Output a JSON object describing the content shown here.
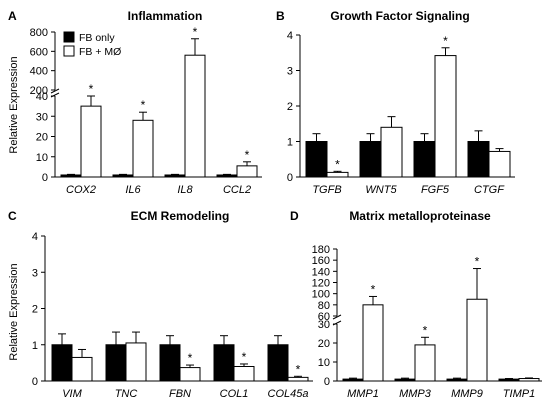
{
  "legend": [
    {
      "label": "FB only",
      "color": "#000000"
    },
    {
      "label": "FB + MØ",
      "color": "#ffffff"
    }
  ],
  "chart_data": [
    {
      "panel": "A",
      "title": "Inflammation",
      "type": "bar",
      "ylabel": "Relative Expression",
      "broken_axis": true,
      "ylim": [
        0,
        800
      ],
      "categories": [
        "COX2",
        "IL6",
        "IL8",
        "CCL2"
      ],
      "series": [
        {
          "name": "FB only",
          "values": [
            1,
            1,
            1,
            1
          ],
          "errors": [
            0.3,
            0.3,
            0.3,
            0.3
          ]
        },
        {
          "name": "FB + MØ",
          "values": [
            35,
            28,
            560,
            5.5
          ],
          "errors": [
            5,
            4,
            170,
            2
          ]
        }
      ],
      "significant": [
        false,
        true,
        false,
        true,
        false,
        true,
        false,
        true
      ],
      "segments": [
        {
          "range": [
            0,
            40
          ],
          "ticks": [
            0,
            10,
            20,
            30,
            40
          ]
        },
        {
          "range": [
            200,
            800
          ],
          "ticks": [
            200,
            400,
            600,
            800
          ]
        }
      ]
    },
    {
      "panel": "B",
      "title": "Growth Factor Signaling",
      "type": "bar",
      "ylabel": "",
      "broken_axis": false,
      "ylim": [
        0,
        4
      ],
      "categories": [
        "TGFB",
        "WNT5",
        "FGF5",
        "CTGF"
      ],
      "series": [
        {
          "name": "FB only",
          "values": [
            1,
            1,
            1,
            1
          ],
          "errors": [
            0.22,
            0.22,
            0.22,
            0.3
          ]
        },
        {
          "name": "FB + MØ",
          "values": [
            0.13,
            1.4,
            3.42,
            0.72
          ],
          "errors": [
            0.03,
            0.3,
            0.22,
            0.08
          ]
        }
      ],
      "significant": [
        false,
        true,
        false,
        false,
        false,
        true,
        false,
        false
      ],
      "segments": [
        {
          "range": [
            0,
            4
          ],
          "ticks": [
            0,
            1,
            2,
            3,
            4
          ]
        }
      ]
    },
    {
      "panel": "C",
      "title": "ECM Remodeling",
      "type": "bar",
      "ylabel": "Relative Expression",
      "broken_axis": false,
      "ylim": [
        0,
        4
      ],
      "categories": [
        "VIM",
        "TNC",
        "FBN",
        "COL1",
        "COL45a"
      ],
      "series": [
        {
          "name": "FB only",
          "values": [
            1,
            1,
            1,
            1,
            1
          ],
          "errors": [
            0.3,
            0.35,
            0.25,
            0.25,
            0.25
          ]
        },
        {
          "name": "FB + MØ",
          "values": [
            0.65,
            1.05,
            0.37,
            0.4,
            0.1
          ],
          "errors": [
            0.22,
            0.3,
            0.07,
            0.07,
            0.03
          ]
        }
      ],
      "significant": [
        false,
        false,
        false,
        false,
        false,
        true,
        false,
        true,
        false,
        true
      ],
      "segments": [
        {
          "range": [
            0,
            4
          ],
          "ticks": [
            0,
            1,
            2,
            3,
            4
          ]
        }
      ]
    },
    {
      "panel": "D",
      "title": "Matrix metalloproteinase",
      "type": "bar",
      "ylabel": "",
      "broken_axis": true,
      "ylim": [
        0,
        180
      ],
      "categories": [
        "MMP1",
        "MMP3",
        "MMP9",
        "TIMP1"
      ],
      "series": [
        {
          "name": "FB only",
          "values": [
            1,
            1,
            1,
            1
          ],
          "errors": [
            0.5,
            0.5,
            0.5,
            0.3
          ]
        },
        {
          "name": "FB + MØ",
          "values": [
            80,
            19,
            90,
            1.3
          ],
          "errors": [
            15,
            4,
            55,
            0.3
          ]
        }
      ],
      "significant": [
        false,
        true,
        false,
        true,
        false,
        true,
        false,
        false
      ],
      "segments": [
        {
          "range": [
            0,
            30
          ],
          "ticks": [
            0,
            10,
            20,
            30
          ]
        },
        {
          "range": [
            60,
            180
          ],
          "ticks": [
            60,
            80,
            100,
            120,
            140,
            160,
            180
          ]
        }
      ]
    }
  ]
}
